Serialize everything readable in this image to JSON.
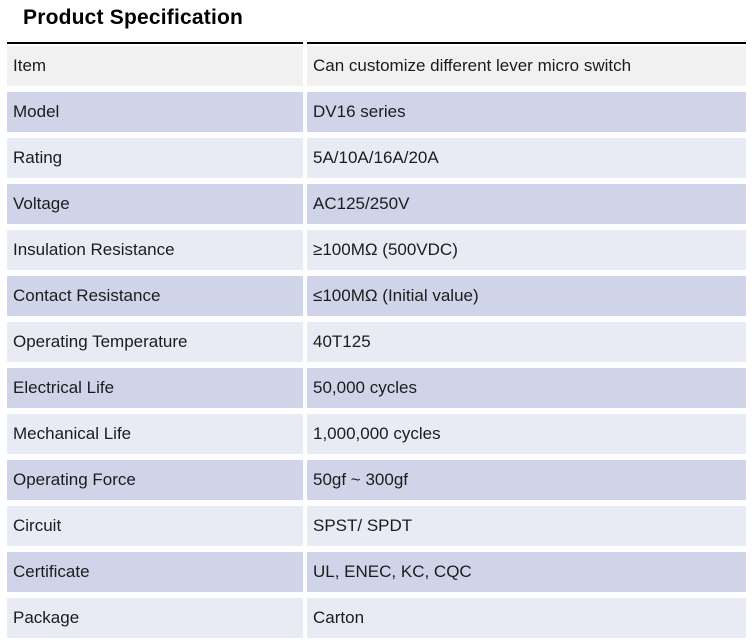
{
  "title": "Product Specification",
  "colors": {
    "header_row": "#F1F1F1",
    "row_dark": "#CFD4E8",
    "row_light": "#E9EBF4",
    "top_rule": "#000000",
    "text": "#1C1C1C"
  },
  "table": {
    "rows": [
      {
        "label": "Item",
        "value": "Can customize different lever micro switch"
      },
      {
        "label": "Model",
        "value": "DV16 series"
      },
      {
        "label": "Rating",
        "value": "5A/10A/16A/20A"
      },
      {
        "label": "Voltage",
        "value": "AC125/250V"
      },
      {
        "label": "Insulation Resistance",
        "value": "≥100MΩ (500VDC)"
      },
      {
        "label": "Contact Resistance",
        "value": "≤100MΩ (Initial value)"
      },
      {
        "label": "Operating Temperature",
        "value": "40T125"
      },
      {
        "label": "Electrical Life",
        "value": "50,000 cycles"
      },
      {
        "label": "Mechanical Life",
        "value": "1,000,000 cycles"
      },
      {
        "label": "Operating Force",
        "value": "50gf ~ 300gf"
      },
      {
        "label": "Circuit",
        "value": "SPST/ SPDT"
      },
      {
        "label": "Certificate",
        "value": "UL, ENEC, KC, CQC"
      },
      {
        "label": "Package",
        "value": "Carton"
      }
    ]
  }
}
